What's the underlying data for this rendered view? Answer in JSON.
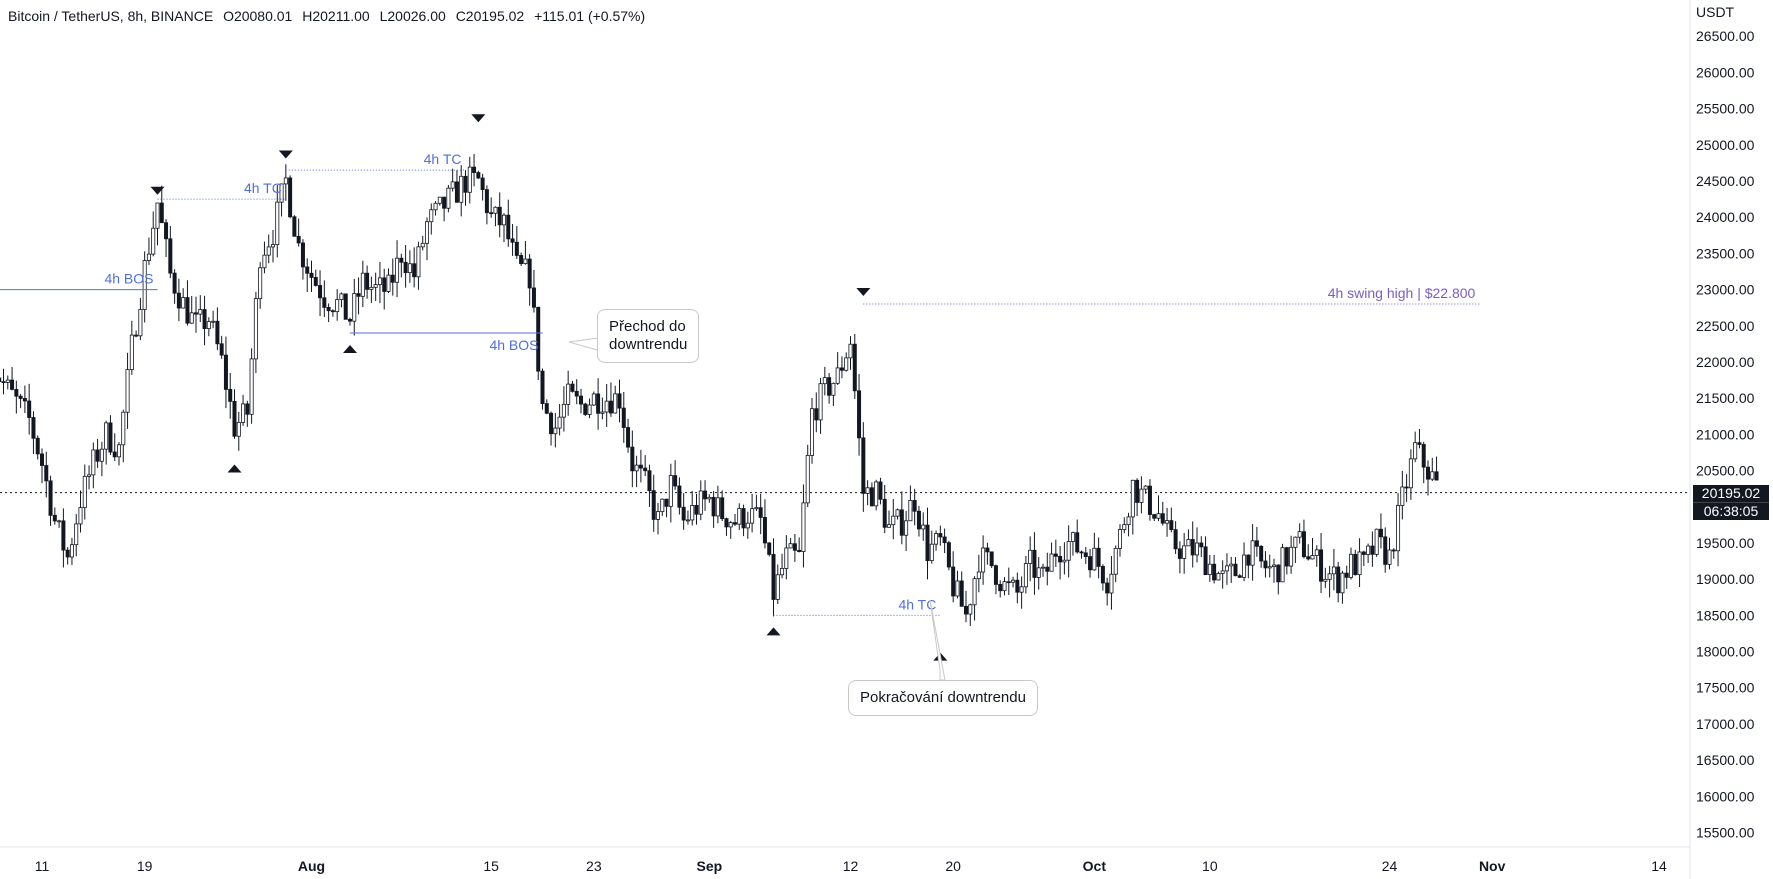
{
  "header": {
    "symbol": "Bitcoin / TetherUS, 8h, BINANCE",
    "open": "O20080.01",
    "high": "H20211.00",
    "low": "L20026.00",
    "close": "C20195.02",
    "change": "+115.01 (+0.57%)"
  },
  "price_axis": {
    "unit": "USDT",
    "current_price": "20195.02",
    "countdown": "06:38:05"
  },
  "colors": {
    "annotation_blue": "#4e6fe0",
    "annotation_purple": "#7b5cc4",
    "candle": "#131722"
  },
  "callouts": {
    "downtrend_transition": [
      "Přechod do",
      "downtrendu"
    ],
    "downtrend_continuation": "Pokračování downtrendu"
  },
  "chart_data": {
    "type": "candlestick",
    "symbol": "BTCUSDT",
    "ylim": [
      15300,
      27000
    ],
    "y_ticks": [
      15500,
      16000,
      16500,
      17000,
      17500,
      18000,
      18500,
      19000,
      19500,
      20000,
      20500,
      21000,
      21500,
      22000,
      22500,
      23000,
      23500,
      24000,
      24500,
      25000,
      25500,
      26000,
      26500
    ],
    "x_ticks": [
      {
        "label": "11",
        "date": "2022-07-11"
      },
      {
        "label": "19",
        "date": "2022-07-19"
      },
      {
        "label": "Aug",
        "date": "2022-08-01"
      },
      {
        "label": "15",
        "date": "2022-08-15"
      },
      {
        "label": "23",
        "date": "2022-08-23"
      },
      {
        "label": "Sep",
        "date": "2022-09-01"
      },
      {
        "label": "12",
        "date": "2022-09-12"
      },
      {
        "label": "20",
        "date": "2022-09-20"
      },
      {
        "label": "Oct",
        "date": "2022-10-01"
      },
      {
        "label": "10",
        "date": "2022-10-10"
      },
      {
        "label": "24",
        "date": "2022-10-24"
      },
      {
        "label": "Nov",
        "date": "2022-11-01"
      },
      {
        "label": "14",
        "date": "2022-11-14"
      }
    ],
    "current_price": 20195.02,
    "price_path": [
      [
        "2022-07-07",
        22000
      ],
      [
        "2022-07-08",
        21700
      ],
      [
        "2022-07-10",
        21200
      ],
      [
        "2022-07-11",
        20600
      ],
      [
        "2022-07-12",
        19800
      ],
      [
        "2022-07-13",
        19300
      ],
      [
        "2022-07-14",
        20100
      ],
      [
        "2022-07-15",
        20600
      ],
      [
        "2022-07-16",
        21000
      ],
      [
        "2022-07-17",
        20800
      ],
      [
        "2022-07-18",
        22200
      ],
      [
        "2022-07-19",
        23300
      ],
      [
        "2022-07-20",
        24200
      ],
      [
        "2022-07-21",
        23200
      ],
      [
        "2022-07-22",
        22800
      ],
      [
        "2022-07-23",
        22500
      ],
      [
        "2022-07-24",
        22600
      ],
      [
        "2022-07-25",
        22000
      ],
      [
        "2022-07-26",
        21100
      ],
      [
        "2022-07-27",
        21300
      ],
      [
        "2022-07-28",
        23500
      ],
      [
        "2022-07-29",
        23800
      ],
      [
        "2022-07-30",
        24500
      ],
      [
        "2022-07-31",
        23600
      ],
      [
        "2022-08-01",
        23200
      ],
      [
        "2022-08-02",
        22900
      ],
      [
        "2022-08-03",
        22800
      ],
      [
        "2022-08-04",
        22600
      ],
      [
        "2022-08-05",
        23100
      ],
      [
        "2022-08-06",
        23000
      ],
      [
        "2022-08-07",
        23000
      ],
      [
        "2022-08-08",
        23500
      ],
      [
        "2022-08-09",
        23200
      ],
      [
        "2022-08-10",
        23900
      ],
      [
        "2022-08-11",
        24100
      ],
      [
        "2022-08-12",
        24300
      ],
      [
        "2022-08-13",
        24500
      ],
      [
        "2022-08-14",
        24500
      ],
      [
        "2022-08-15",
        24000
      ],
      [
        "2022-08-16",
        23900
      ],
      [
        "2022-08-17",
        23300
      ],
      [
        "2022-08-18",
        23200
      ],
      [
        "2022-08-19",
        21400
      ],
      [
        "2022-08-20",
        21100
      ],
      [
        "2022-08-21",
        21500
      ],
      [
        "2022-08-22",
        21400
      ],
      [
        "2022-08-23",
        21500
      ],
      [
        "2022-08-24",
        21500
      ],
      [
        "2022-08-25",
        21500
      ],
      [
        "2022-08-26",
        20600
      ],
      [
        "2022-08-27",
        20300
      ],
      [
        "2022-08-28",
        19800
      ],
      [
        "2022-08-29",
        20300
      ],
      [
        "2022-08-30",
        19800
      ],
      [
        "2022-08-31",
        20000
      ],
      [
        "2022-09-01",
        20100
      ],
      [
        "2022-09-02",
        19900
      ],
      [
        "2022-09-03",
        19800
      ],
      [
        "2022-09-04",
        19900
      ],
      [
        "2022-09-05",
        19800
      ],
      [
        "2022-09-06",
        18800
      ],
      [
        "2022-09-07",
        19300
      ],
      [
        "2022-09-08",
        19300
      ],
      [
        "2022-09-09",
        21300
      ],
      [
        "2022-09-10",
        21600
      ],
      [
        "2022-09-11",
        21800
      ],
      [
        "2022-09-12",
        22300
      ],
      [
        "2022-09-13",
        20200
      ],
      [
        "2022-09-14",
        20200
      ],
      [
        "2022-09-15",
        19700
      ],
      [
        "2022-09-16",
        19800
      ],
      [
        "2022-09-17",
        20100
      ],
      [
        "2022-09-18",
        19400
      ],
      [
        "2022-09-19",
        19500
      ],
      [
        "2022-09-20",
        18900
      ],
      [
        "2022-09-21",
        18500
      ],
      [
        "2022-09-22",
        19300
      ],
      [
        "2022-09-23",
        19200
      ],
      [
        "2022-09-24",
        18900
      ],
      [
        "2022-09-25",
        18800
      ],
      [
        "2022-09-26",
        19200
      ],
      [
        "2022-09-27",
        19000
      ],
      [
        "2022-09-28",
        19400
      ],
      [
        "2022-09-29",
        19500
      ],
      [
        "2022-09-30",
        19400
      ],
      [
        "2022-10-01",
        19300
      ],
      [
        "2022-10-02",
        19000
      ],
      [
        "2022-10-03",
        19600
      ],
      [
        "2022-10-04",
        20300
      ],
      [
        "2022-10-05",
        20100
      ],
      [
        "2022-10-06",
        19900
      ],
      [
        "2022-10-07",
        19500
      ],
      [
        "2022-10-08",
        19400
      ],
      [
        "2022-10-09",
        19400
      ],
      [
        "2022-10-10",
        19200
      ],
      [
        "2022-10-11",
        19000
      ],
      [
        "2022-10-12",
        19100
      ],
      [
        "2022-10-13",
        19400
      ],
      [
        "2022-10-14",
        19200
      ],
      [
        "2022-10-15",
        19100
      ],
      [
        "2022-10-16",
        19300
      ],
      [
        "2022-10-17",
        19500
      ],
      [
        "2022-10-18",
        19300
      ],
      [
        "2022-10-19",
        19100
      ],
      [
        "2022-10-20",
        19000
      ],
      [
        "2022-10-21",
        19200
      ],
      [
        "2022-10-22",
        19200
      ],
      [
        "2022-10-23",
        19500
      ],
      [
        "2022-10-24",
        19300
      ],
      [
        "2022-10-25",
        20100
      ],
      [
        "2022-10-26",
        20800
      ],
      [
        "2022-10-27",
        20500
      ],
      [
        "2022-10-28",
        20195
      ]
    ],
    "levels": [
      {
        "label": "4h BOS",
        "price": 23000,
        "from": "2022-07-07",
        "to": "2022-07-20",
        "style": "solid",
        "color": "#4e6fe0"
      },
      {
        "label": "4h TC",
        "price": 24250,
        "from": "2022-07-20",
        "to": "2022-07-30",
        "style": "dotted",
        "color": "#4e6fe0"
      },
      {
        "label": "4h TC",
        "price": 24650,
        "from": "2022-07-30",
        "to": "2022-08-13",
        "style": "dotted",
        "color": "#4e6fe0"
      },
      {
        "label": "4h BOS",
        "price": 22400,
        "from": "2022-08-04",
        "to": "2022-08-19",
        "style": "solid",
        "color": "#4e6fe0"
      },
      {
        "label": "4h TC",
        "price": 18500,
        "from": "2022-09-06",
        "to": "2022-09-19",
        "style": "dotted",
        "color": "#4e6fe0"
      },
      {
        "label": "4h swing high | $22.800",
        "price": 22800,
        "from": "2022-09-13",
        "to": "2022-10-31",
        "style": "dotted",
        "color": "#7b5cc4"
      }
    ],
    "swing_highs": [
      {
        "date": "2022-07-20",
        "price": 24200
      },
      {
        "date": "2022-07-30",
        "price": 24700
      },
      {
        "date": "2022-08-14",
        "price": 25200
      },
      {
        "date": "2022-09-13",
        "price": 22800
      }
    ],
    "swing_lows": [
      {
        "date": "2022-07-26",
        "price": 20750
      },
      {
        "date": "2022-08-04",
        "price": 22400
      },
      {
        "date": "2022-09-06",
        "price": 18500
      },
      {
        "date": "2022-09-19",
        "price": 18150
      }
    ]
  }
}
